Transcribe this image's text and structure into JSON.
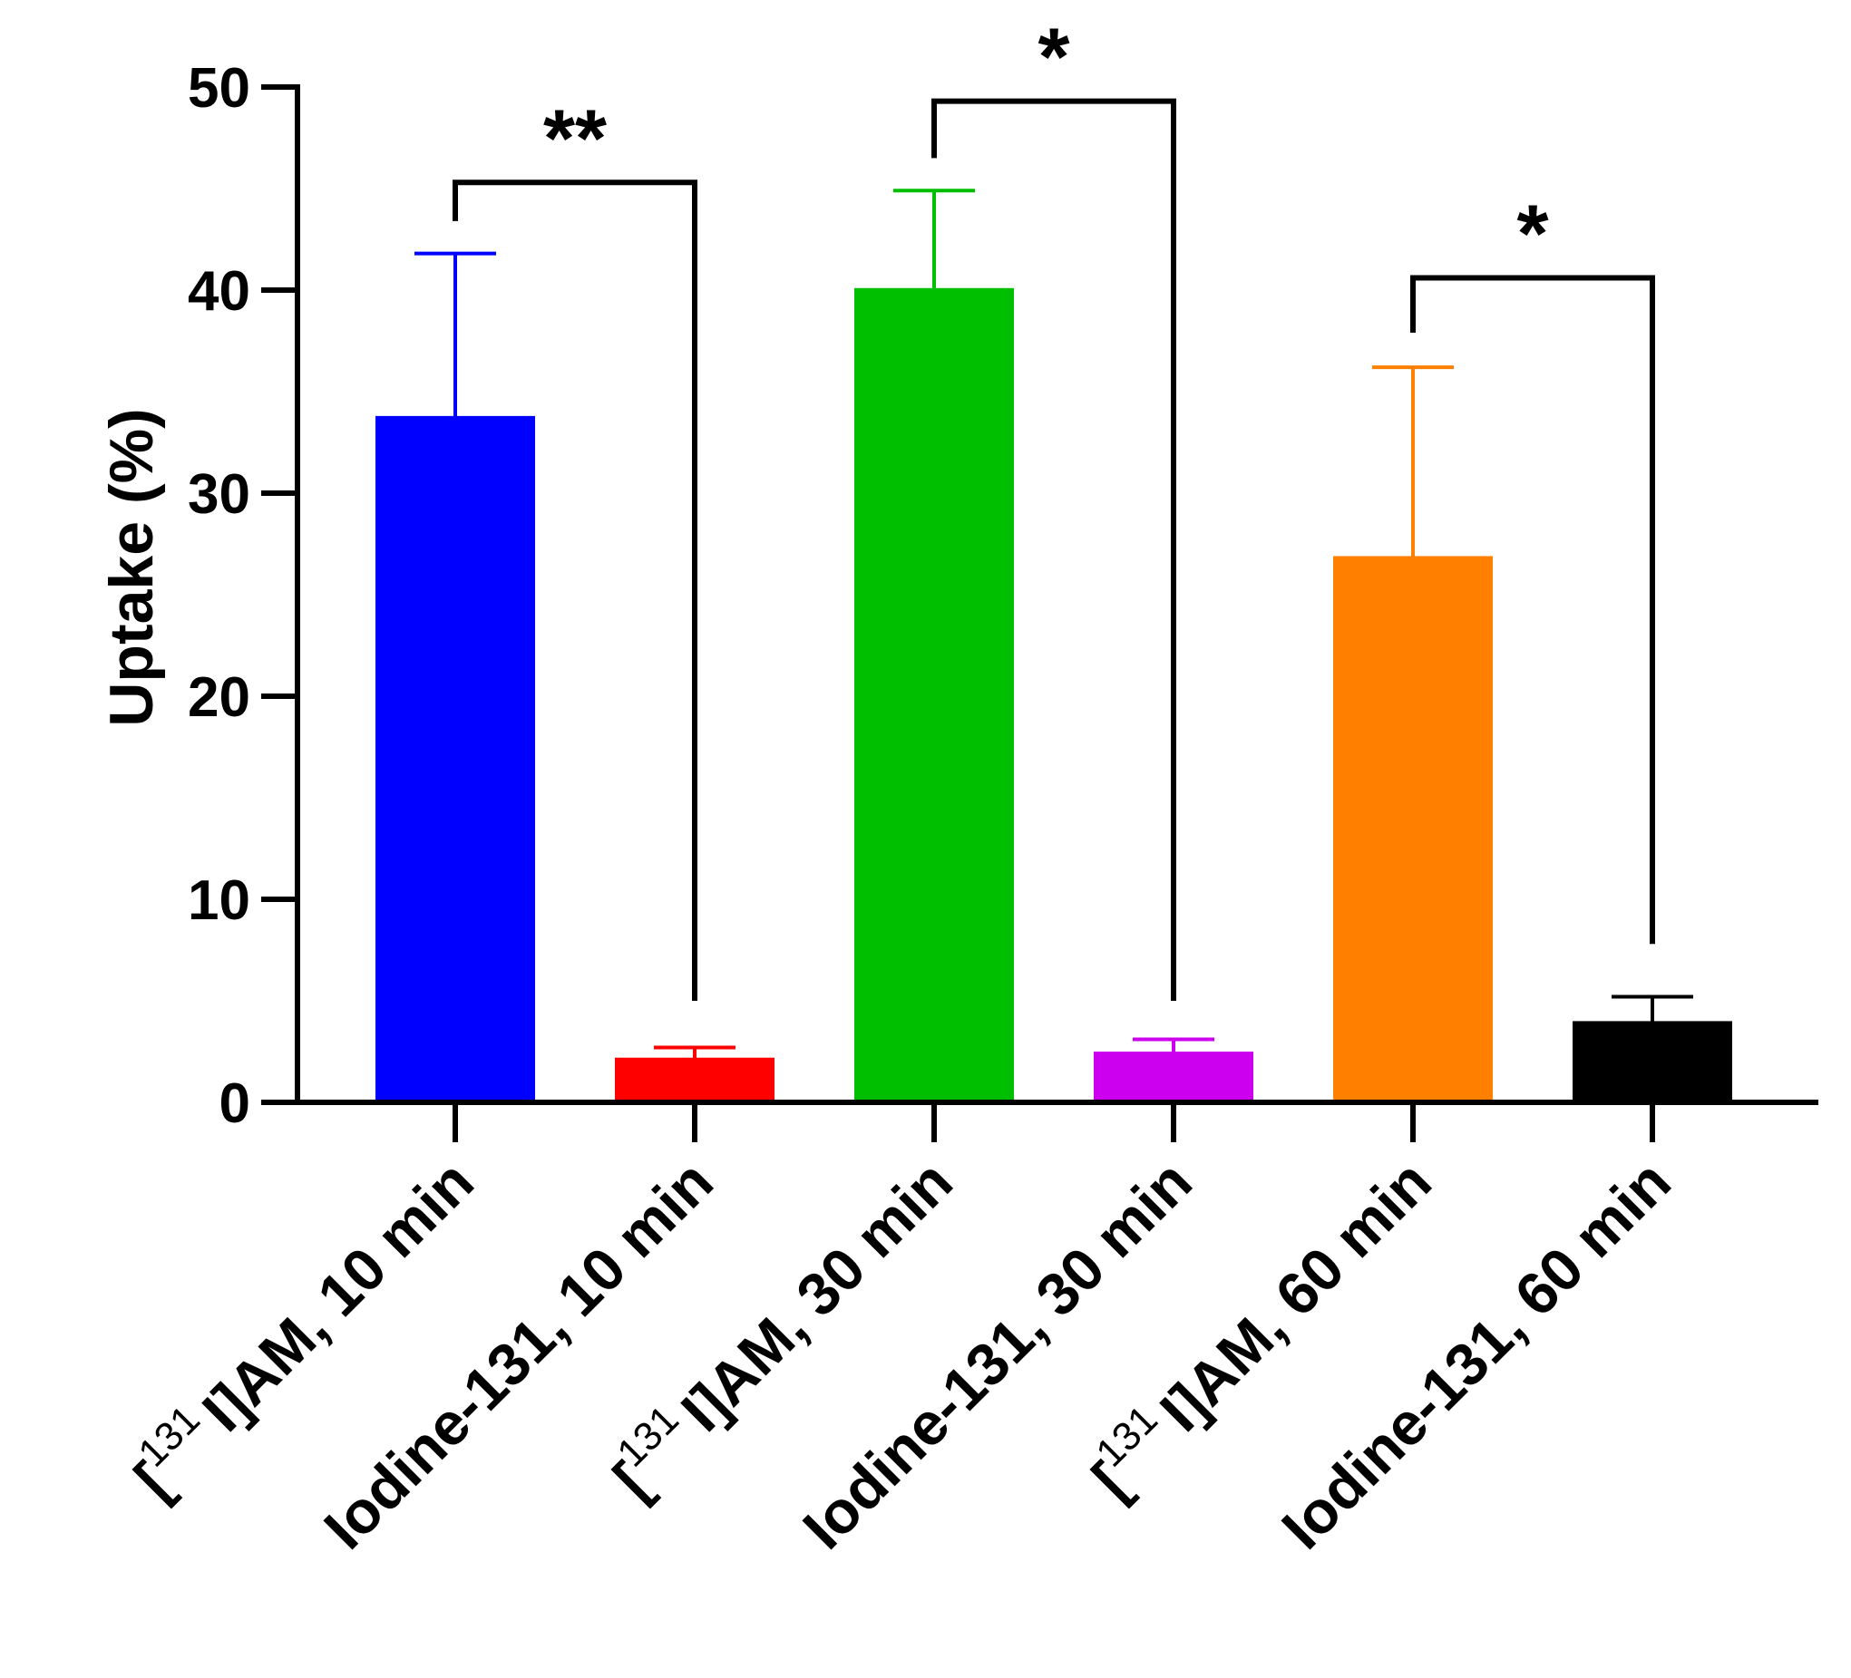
{
  "chart_data": {
    "type": "bar",
    "title": "",
    "xlabel": "",
    "ylabel": "Uptake (%)",
    "ylim": [
      0,
      50
    ],
    "yticks": [
      0,
      10,
      20,
      30,
      40,
      50
    ],
    "bars": [
      {
        "prefix": "[",
        "sup": "131",
        "name": "I]AM, 10 min",
        "value": 33.8,
        "error": 8.0,
        "color": "#0000ff"
      },
      {
        "prefix": "",
        "sup": "",
        "name": "Iodine-131, 10 min",
        "value": 2.2,
        "error": 0.5,
        "color": "#ff0000"
      },
      {
        "prefix": "[",
        "sup": "131",
        "name": "I]AM, 30 min",
        "value": 40.1,
        "error": 4.8,
        "color": "#00bf00"
      },
      {
        "prefix": "",
        "sup": "",
        "name": "Iodine-131, 30 min",
        "value": 2.5,
        "error": 0.6,
        "color": "#cc00ee"
      },
      {
        "prefix": "[",
        "sup": "131",
        "name": "I]AM, 60 min",
        "value": 26.9,
        "error": 9.3,
        "color": "#ff8000"
      },
      {
        "prefix": "",
        "sup": "",
        "name": "Iodine-131, 60 min",
        "value": 4.0,
        "error": 1.2,
        "color": "#000000"
      }
    ],
    "significance": [
      {
        "from": 0,
        "to": 1,
        "y": 45.3,
        "left_end": 43.4,
        "right_end": 5.0,
        "label": "**"
      },
      {
        "from": 2,
        "to": 3,
        "y": 49.3,
        "left_end": 46.5,
        "right_end": 5.0,
        "label": "*"
      },
      {
        "from": 4,
        "to": 5,
        "y": 40.6,
        "left_end": 37.9,
        "right_end": 7.8,
        "label": "*"
      }
    ]
  }
}
